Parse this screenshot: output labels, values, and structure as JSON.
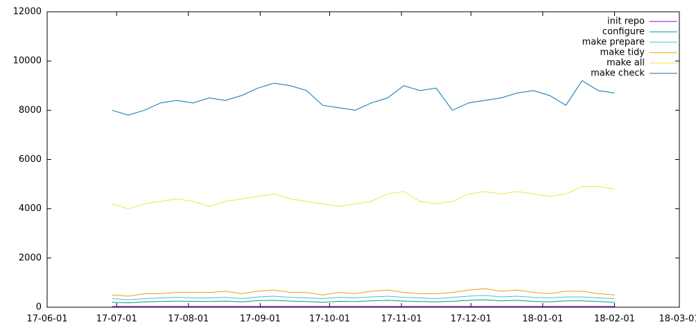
{
  "chart_data": {
    "type": "line",
    "x": [
      "17-06-29",
      "17-07-06",
      "17-07-13",
      "17-07-20",
      "17-07-27",
      "17-08-03",
      "17-08-10",
      "17-08-17",
      "17-08-24",
      "17-08-31",
      "17-09-07",
      "17-09-14",
      "17-09-21",
      "17-09-28",
      "17-10-05",
      "17-10-12",
      "17-10-19",
      "17-10-26",
      "17-11-02",
      "17-11-09",
      "17-11-16",
      "17-11-23",
      "17-11-30",
      "17-12-07",
      "17-12-14",
      "17-12-21",
      "17-12-28",
      "18-01-04",
      "18-01-11",
      "18-01-18",
      "18-01-25",
      "18-02-01"
    ],
    "series": [
      {
        "name": "init repo",
        "color": "#9400d3",
        "values": [
          30,
          30,
          30,
          30,
          30,
          30,
          30,
          30,
          30,
          30,
          30,
          30,
          30,
          30,
          30,
          30,
          30,
          30,
          30,
          30,
          30,
          30,
          30,
          30,
          30,
          30,
          30,
          30,
          30,
          30,
          30,
          30
        ]
      },
      {
        "name": "configure",
        "color": "#009e73",
        "values": [
          200,
          180,
          220,
          230,
          250,
          240,
          230,
          250,
          220,
          270,
          280,
          250,
          230,
          200,
          240,
          230,
          260,
          280,
          250,
          230,
          220,
          240,
          280,
          300,
          260,
          280,
          240,
          220,
          260,
          260,
          230,
          200
        ]
      },
      {
        "name": "make prepare",
        "color": "#56b4e9",
        "values": [
          350,
          300,
          350,
          380,
          400,
          380,
          380,
          400,
          350,
          420,
          450,
          400,
          380,
          350,
          400,
          380,
          420,
          450,
          400,
          380,
          350,
          400,
          450,
          480,
          420,
          450,
          400,
          380,
          420,
          420,
          380,
          350
        ]
      },
      {
        "name": "make tidy",
        "color": "#e69f00",
        "values": [
          500,
          450,
          550,
          550,
          600,
          600,
          600,
          650,
          550,
          650,
          700,
          600,
          600,
          500,
          600,
          550,
          650,
          700,
          600,
          550,
          550,
          600,
          700,
          750,
          650,
          700,
          600,
          550,
          650,
          650,
          550,
          500
        ]
      },
      {
        "name": "make all",
        "color": "#f0e442",
        "values": [
          4200,
          4000,
          4200,
          4300,
          4400,
          4300,
          4100,
          4300,
          4400,
          4500,
          4600,
          4400,
          4300,
          4200,
          4100,
          4200,
          4300,
          4600,
          4700,
          4300,
          4200,
          4300,
          4600,
          4700,
          4600,
          4700,
          4600,
          4500,
          4600,
          4900,
          4900,
          4800
        ]
      },
      {
        "name": "make check",
        "color": "#0072b2",
        "values": [
          8000,
          7800,
          8000,
          8300,
          8400,
          8300,
          8500,
          8400,
          8600,
          8900,
          9100,
          9000,
          8800,
          8200,
          8100,
          8000,
          8300,
          8500,
          9000,
          8800,
          8900,
          8000,
          8300,
          8400,
          8500,
          8700,
          8800,
          8600,
          8200,
          9200,
          8800,
          8700
        ]
      }
    ],
    "xlim": [
      "17-06-01",
      "18-03-01"
    ],
    "xticks": [
      "17-06-01",
      "17-07-01",
      "17-08-01",
      "17-09-01",
      "17-10-01",
      "17-11-01",
      "17-12-01",
      "18-01-01",
      "18-02-01",
      "18-03-01"
    ],
    "ylim": [
      0,
      12000
    ],
    "yticks": [
      0,
      2000,
      4000,
      6000,
      8000,
      10000,
      12000
    ],
    "legend": "top right",
    "grid": false
  }
}
